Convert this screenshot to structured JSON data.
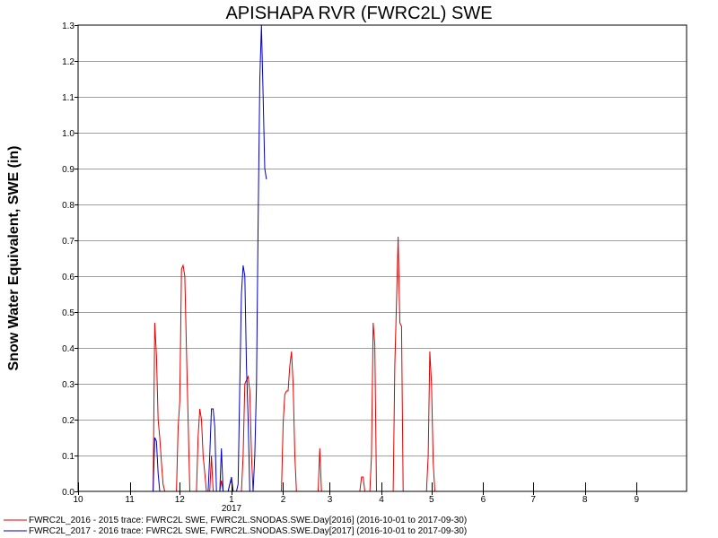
{
  "chart_data": {
    "type": "line",
    "title": "APISHAPA RVR (FWRC2L) SWE",
    "xlabel": "",
    "ylabel": "Snow Water Equivalent, SWE (in)",
    "year_label": "2017",
    "ylim": [
      0,
      1.3
    ],
    "y_ticks": [
      "0.0",
      "0.1",
      "0.2",
      "0.3",
      "0.4",
      "0.5",
      "0.6",
      "0.7",
      "0.8",
      "0.9",
      "1.0",
      "1.1",
      "1.2",
      "1.3"
    ],
    "xlim": [
      "2016-10-01",
      "2017-09-30"
    ],
    "x_ticks": [
      {
        "date": "2016-10-01",
        "label": "10"
      },
      {
        "date": "2016-11-01",
        "label": "11"
      },
      {
        "date": "2016-12-01",
        "label": "12"
      },
      {
        "date": "2017-01-01",
        "label": "1"
      },
      {
        "date": "2017-02-01",
        "label": "2"
      },
      {
        "date": "2017-03-01",
        "label": "3"
      },
      {
        "date": "2017-04-01",
        "label": "4"
      },
      {
        "date": "2017-05-01",
        "label": "5"
      },
      {
        "date": "2017-06-01",
        "label": "6"
      },
      {
        "date": "2017-07-01",
        "label": "7"
      },
      {
        "date": "2017-08-01",
        "label": "8"
      },
      {
        "date": "2017-09-01",
        "label": "9"
      }
    ],
    "grid": true,
    "legend_position": "bottom-left",
    "series": [
      {
        "name": "FWRC2L_2016 - 2015 trace: FWRC2L SWE, FWRC2L.SNODAS.SWE.Day[2016] (2016-10-01 to 2017-09-30)",
        "color": "#e00000",
        "x": [
          "2016-11-15",
          "2016-11-16",
          "2016-11-17",
          "2016-11-18",
          "2016-11-19",
          "2016-11-20",
          "2016-11-21",
          "2016-11-22",
          "2016-11-29",
          "2016-11-30",
          "2016-12-01",
          "2016-12-02",
          "2016-12-03",
          "2016-12-04",
          "2016-12-05",
          "2016-12-06",
          "2016-12-07",
          "2016-12-11",
          "2016-12-12",
          "2016-12-13",
          "2016-12-14",
          "2016-12-15",
          "2016-12-16",
          "2016-12-17",
          "2016-12-19",
          "2016-12-20",
          "2016-12-21",
          "2016-12-25",
          "2016-12-26",
          "2016-12-27",
          "2016-12-30",
          "2016-12-31",
          "2017-01-01",
          "2017-01-02",
          "2017-01-07",
          "2017-01-08",
          "2017-01-09",
          "2017-01-10",
          "2017-01-11",
          "2017-01-12",
          "2017-01-13",
          "2017-01-14",
          "2017-01-31",
          "2017-02-01",
          "2017-02-02",
          "2017-02-03",
          "2017-02-04",
          "2017-02-05",
          "2017-02-06",
          "2017-02-07",
          "2017-02-08",
          "2017-02-09",
          "2017-02-22",
          "2017-02-23",
          "2017-02-24",
          "2017-03-19",
          "2017-03-20",
          "2017-03-21",
          "2017-03-22",
          "2017-03-25",
          "2017-03-26",
          "2017-03-27",
          "2017-03-28",
          "2017-03-29",
          "2017-04-08",
          "2017-04-09",
          "2017-04-10",
          "2017-04-11",
          "2017-04-12",
          "2017-04-13",
          "2017-04-14",
          "2017-04-28",
          "2017-04-29",
          "2017-04-30",
          "2017-05-01",
          "2017-05-02",
          "2017-05-03"
        ],
        "values": [
          0,
          0.47,
          0.38,
          0.2,
          0.15,
          0.08,
          0.02,
          0,
          0,
          0.18,
          0.25,
          0.62,
          0.63,
          0.6,
          0.4,
          0.2,
          0,
          0,
          0.15,
          0.23,
          0.2,
          0.1,
          0.05,
          0,
          0,
          0.1,
          0,
          0,
          0.03,
          0,
          0,
          0.02,
          0.03,
          0,
          0,
          0.1,
          0.3,
          0.31,
          0.32,
          0.28,
          0.1,
          0,
          0,
          0.19,
          0.27,
          0.28,
          0.28,
          0.35,
          0.39,
          0.3,
          0.1,
          0,
          0,
          0.12,
          0,
          0,
          0.04,
          0.04,
          0,
          0,
          0.1,
          0.47,
          0.41,
          0,
          0,
          0.35,
          0.53,
          0.71,
          0.47,
          0.46,
          0,
          0,
          0.1,
          0.39,
          0.3,
          0.08,
          0
        ]
      },
      {
        "name": "FWRC2L_2017 - 2016 trace: FWRC2L SWE, FWRC2L.SNODAS.SWE.Day[2017] (2016-10-01 to 2017-09-30)",
        "color": "#0000c8",
        "x": [
          "2016-11-15",
          "2016-11-16",
          "2016-11-17",
          "2016-11-18",
          "2016-11-19",
          "2016-12-18",
          "2016-12-19",
          "2016-12-20",
          "2016-12-21",
          "2016-12-22",
          "2016-12-23",
          "2016-12-25",
          "2016-12-26",
          "2016-12-27",
          "2016-12-30",
          "2016-12-31",
          "2017-01-01",
          "2017-01-02",
          "2017-01-04",
          "2017-01-05",
          "2017-01-06",
          "2017-01-07",
          "2017-01-08",
          "2017-01-09",
          "2017-01-10",
          "2017-01-11",
          "2017-01-12",
          "2017-01-14",
          "2017-01-15",
          "2017-01-16",
          "2017-01-17",
          "2017-01-18",
          "2017-01-19",
          "2017-01-20",
          "2017-01-21",
          "2017-01-22"
        ],
        "values": [
          0,
          0.15,
          0.14,
          0.05,
          0,
          0,
          0.1,
          0.23,
          0.23,
          0.18,
          0,
          0,
          0.12,
          0,
          0,
          0.02,
          0.04,
          0,
          0,
          0.02,
          0.3,
          0.55,
          0.63,
          0.6,
          0.35,
          0.2,
          0,
          0,
          0.1,
          0.3,
          0.75,
          1.15,
          1.3,
          1.1,
          0.9,
          0.87
        ]
      }
    ]
  }
}
